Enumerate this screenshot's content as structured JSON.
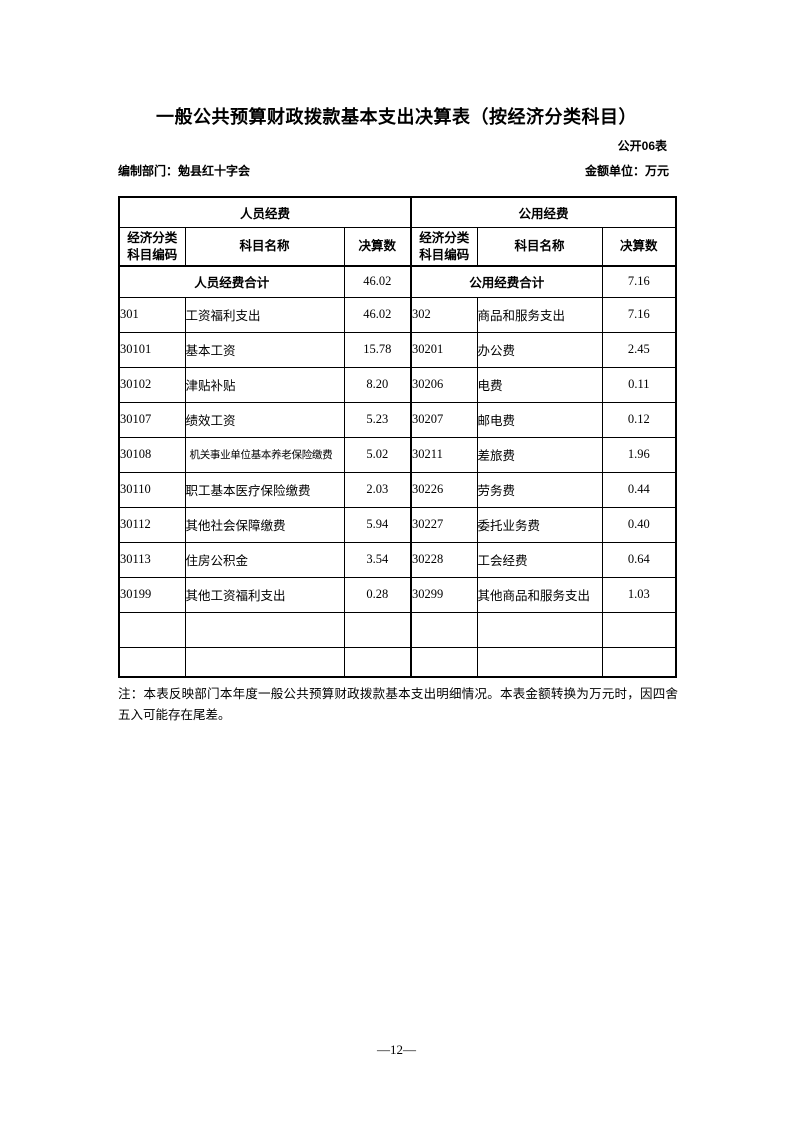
{
  "page": {
    "title": "一般公共预算财政拨款基本支出决算表（按经济分类科目）",
    "table_code": "公开06表",
    "prepared_by": "编制部门：勉县红十字会",
    "unit": "金额单位：万元",
    "note": "注：本表反映部门本年度一般公共预算财政拨款基本支出明细情况。本表金额转换为万元时，因四舍五入可能存在尾差。",
    "page_number": "—12—"
  },
  "table": {
    "group_headers": {
      "left": "人员经费",
      "right": "公用经费"
    },
    "col_headers": {
      "code_line1": "经济分类",
      "code_line2": "科目编码",
      "name": "科目名称",
      "value": "决算数"
    },
    "summary": {
      "left_label": "人员经费合计",
      "left_value": "46.02",
      "right_label": "公用经费合计",
      "right_value": "7.16"
    },
    "rows": [
      {
        "lcode": "301",
        "lname": "工资福利支出",
        "lval": "46.02",
        "rcode": "302",
        "rname": "商品和服务支出",
        "rval": "7.16"
      },
      {
        "lcode": "30101",
        "lname": "基本工资",
        "lval": "15.78",
        "rcode": "30201",
        "rname": "办公费",
        "rval": "2.45"
      },
      {
        "lcode": "30102",
        "lname": "津贴补贴",
        "lval": "8.20",
        "rcode": "30206",
        "rname": "电费",
        "rval": "0.11"
      },
      {
        "lcode": "30107",
        "lname": "绩效工资",
        "lval": "5.23",
        "rcode": "30207",
        "rname": "邮电费",
        "rval": "0.12"
      },
      {
        "lcode": "30108",
        "lname": "机关事业单位基本养老保险缴费",
        "lval": "5.02",
        "rcode": "30211",
        "rname": "差旅费",
        "rval": "1.96"
      },
      {
        "lcode": "30110",
        "lname": "职工基本医疗保险缴费",
        "lval": "2.03",
        "rcode": "30226",
        "rname": "劳务费",
        "rval": "0.44"
      },
      {
        "lcode": "30112",
        "lname": "其他社会保障缴费",
        "lval": "5.94",
        "rcode": "30227",
        "rname": "委托业务费",
        "rval": "0.40"
      },
      {
        "lcode": "30113",
        "lname": "住房公积金",
        "lval": "3.54",
        "rcode": "30228",
        "rname": "工会经费",
        "rval": "0.64"
      },
      {
        "lcode": "30199",
        "lname": "其他工资福利支出",
        "lval": "0.28",
        "rcode": "30299",
        "rname": "其他商品和服务支出",
        "rval": "1.03"
      }
    ],
    "empty_rows": 2
  }
}
